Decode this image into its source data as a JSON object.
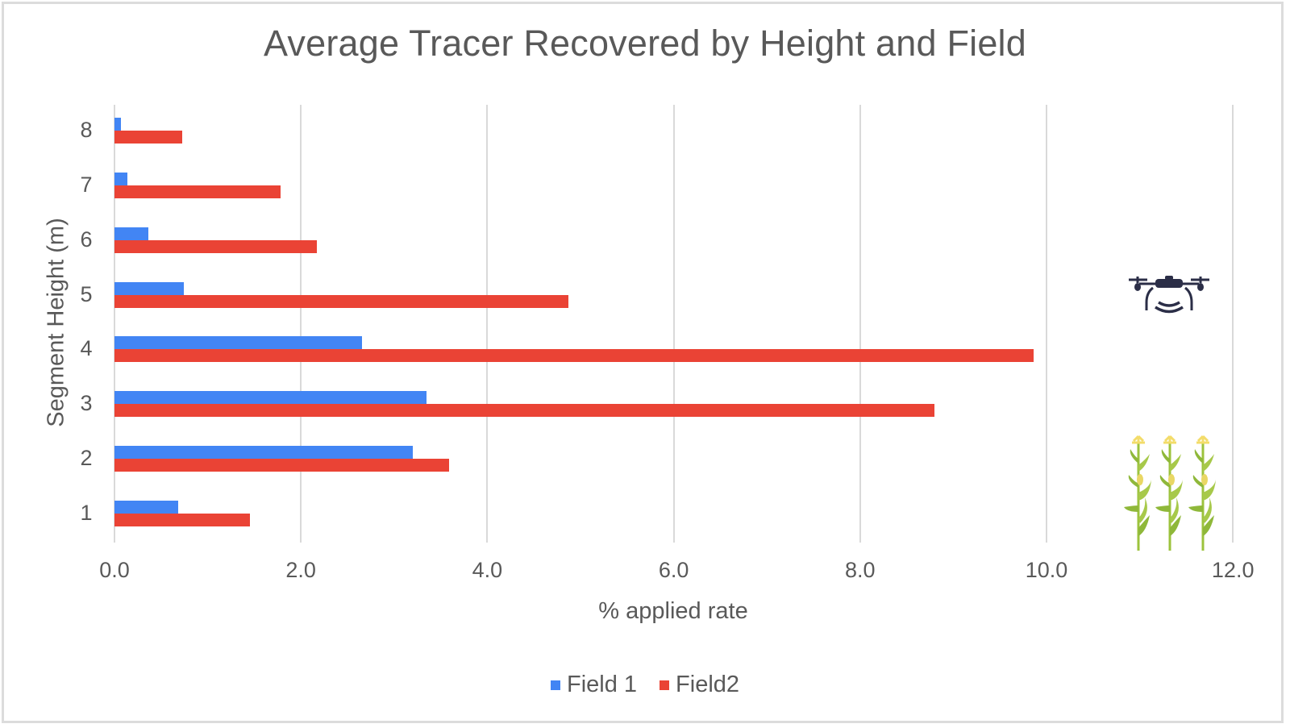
{
  "chart_data": {
    "type": "bar",
    "orientation": "horizontal",
    "title": "Average Tracer Recovered by Height and Field",
    "xlabel": "% applied rate",
    "ylabel": "Segment Height (m)",
    "categories": [
      "1",
      "2",
      "3",
      "4",
      "5",
      "6",
      "7",
      "8"
    ],
    "series": [
      {
        "name": "Field 1",
        "color": "#4285f4",
        "values": [
          0.68,
          3.2,
          3.35,
          2.66,
          0.74,
          0.36,
          0.14,
          0.07
        ]
      },
      {
        "name": "Field2",
        "color": "#ea4335",
        "values": [
          1.45,
          3.59,
          8.8,
          9.86,
          4.87,
          2.17,
          1.78,
          0.73
        ]
      }
    ],
    "xlim": [
      0,
      12
    ],
    "xticks": [
      "0.0",
      "2.0",
      "4.0",
      "6.0",
      "8.0",
      "10.0",
      "12.0"
    ],
    "grid": "vertical",
    "legend_position": "bottom",
    "decorations": [
      "drone-icon",
      "corn-stalks-icon"
    ]
  },
  "legend": {
    "items": [
      {
        "label": "Field 1",
        "color": "#4285f4"
      },
      {
        "label": "Field2",
        "color": "#ea4335"
      }
    ]
  }
}
